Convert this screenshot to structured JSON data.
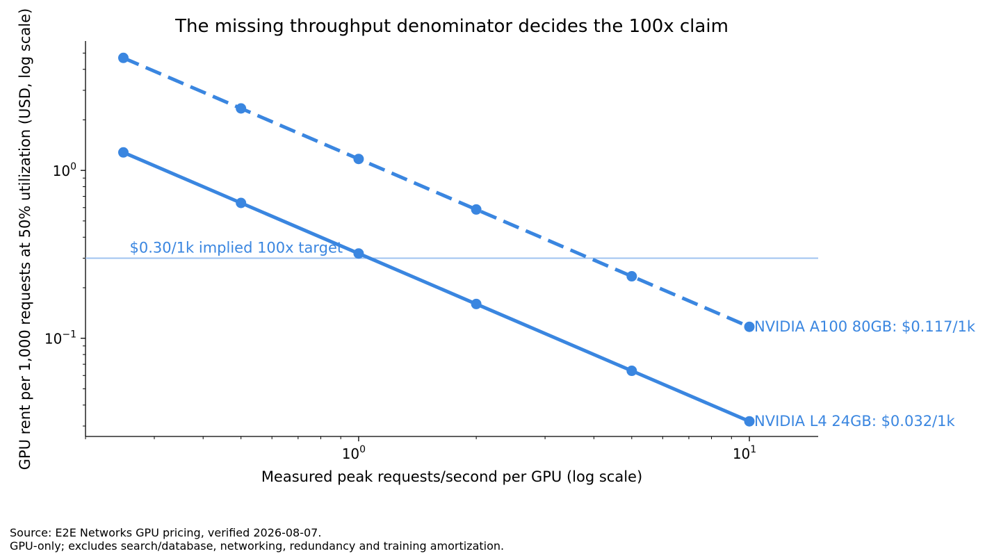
{
  "chart_data": {
    "type": "line",
    "title": "The missing throughput denominator decides the 100x claim",
    "xlabel": "Measured peak requests/second per GPU (log scale)",
    "ylabel": "GPU rent per 1,000 requests at 50% utilization (USD, log scale)",
    "x_scale": "log",
    "y_scale": "log",
    "xlim": [
      0.2,
      15
    ],
    "ylim": [
      0.026,
      5.9
    ],
    "x_ticks": [
      {
        "base": "10",
        "exp": "0",
        "value": 1
      },
      {
        "base": "10",
        "exp": "1",
        "value": 10
      }
    ],
    "y_ticks": [
      {
        "base": "10",
        "exp": "0",
        "value": 1
      },
      {
        "base": "10",
        "exp": "−1",
        "value": 0.1
      }
    ],
    "x": [
      0.25,
      0.5,
      1,
      2,
      5,
      10
    ],
    "series": [
      {
        "label": "NVIDIA A100 80GB: $0.117/1k",
        "style": "dashed",
        "color": "#3a86e0",
        "values": [
          4.68,
          2.34,
          1.17,
          0.585,
          0.234,
          0.117
        ]
      },
      {
        "label": "NVIDIA L4 24GB: $0.032/1k",
        "style": "solid",
        "color": "#3a86e0",
        "values": [
          1.28,
          0.64,
          0.32,
          0.16,
          0.064,
          0.032
        ]
      }
    ],
    "reference_line": {
      "y": 0.3,
      "label": "$0.30/1k implied 100x target",
      "color": "#9fc3f0"
    },
    "grid": false,
    "legend": "none"
  },
  "footer": {
    "source": "Source: E2E Networks GPU pricing, verified 2026-08-07.",
    "note": "GPU-only; excludes search/database, networking, redundancy and training amortization."
  }
}
